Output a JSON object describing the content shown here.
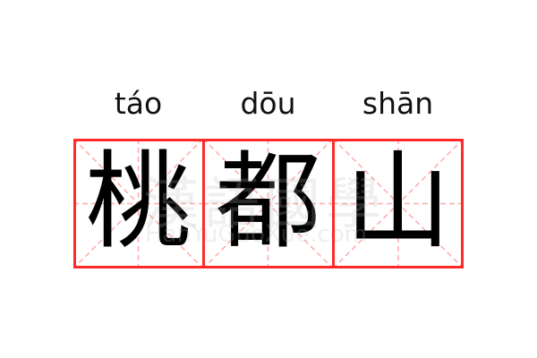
{
  "card": {
    "characters": [
      {
        "hanzi": "桃",
        "pinyin": "táo"
      },
      {
        "hanzi": "都",
        "pinyin": "dōu"
      },
      {
        "hanzi": "山",
        "pinyin": "shān"
      }
    ],
    "colors": {
      "border": "#ff2a2a",
      "guide": "#ffaaaa",
      "text": "#000000"
    },
    "watermark": {
      "chinese": "漢語國學",
      "latin": "HanYuGuoXue.com"
    }
  }
}
